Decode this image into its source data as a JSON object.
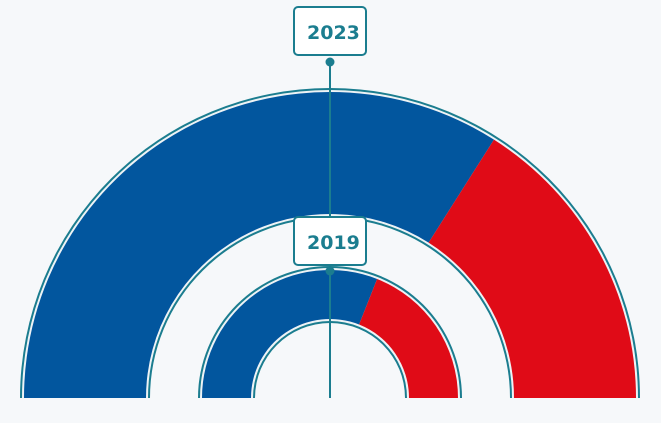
{
  "chart_data": {
    "type": "pie",
    "shape": "semicircle-nested",
    "rings": [
      {
        "year": "2023",
        "position": "outer",
        "slices": [
          {
            "value": 0.68,
            "color": "#02569e"
          },
          {
            "value": 0.32,
            "color": "#e00b17"
          }
        ]
      },
      {
        "year": "2019",
        "position": "inner",
        "slices": [
          {
            "value": 0.62,
            "color": "#02569e"
          },
          {
            "value": 0.38,
            "color": "#e00b17"
          }
        ]
      }
    ]
  },
  "colors": {
    "accent": "#1b7d8f",
    "background": "#f6f8fa"
  }
}
